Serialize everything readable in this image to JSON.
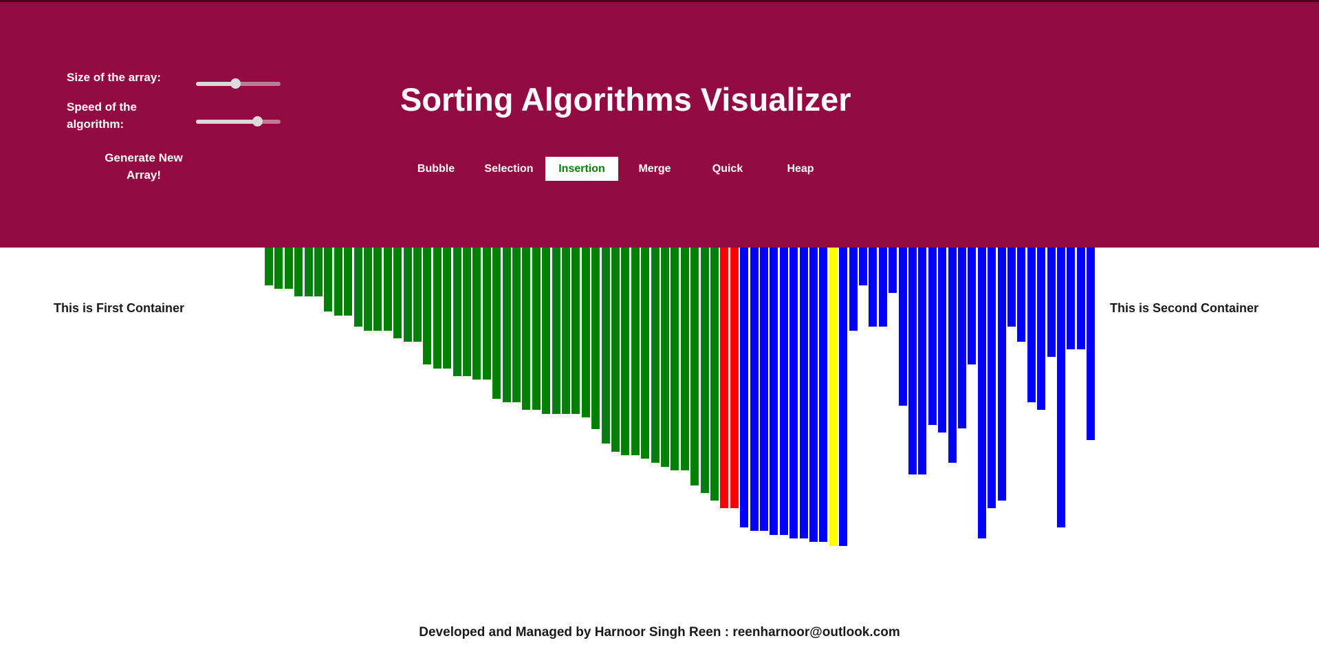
{
  "header": {
    "title": "Sorting Algorithms Visualizer",
    "size_label": "Size of the array:",
    "speed_label_line1": "Speed of the",
    "speed_label_line2": "algorithm:",
    "size_slider_value": 0.46,
    "speed_slider_value": 0.72,
    "generate_line1": "Generate New",
    "generate_line2": "Array!",
    "algorithms": [
      "Bubble",
      "Selection",
      "Insertion",
      "Merge",
      "Quick",
      "Heap"
    ],
    "active_algorithm": "Insertion"
  },
  "first_container": "This is First Container",
  "second_container": "This is Second Container",
  "footer": "Developed and Managed by Harnoor Singh Reen : reenharnoor@outlook.com",
  "colors": {
    "header_bg": "#930941",
    "sorted": "#008000",
    "comparing": "#ff0000",
    "current": "#ffff00",
    "unsorted": "#0000ff"
  },
  "chart_data": {
    "type": "bar",
    "values": [
      55,
      60,
      60,
      71,
      71,
      71,
      93,
      99,
      99,
      115,
      121,
      121,
      121,
      132,
      137,
      137,
      170,
      176,
      176,
      187,
      187,
      192,
      192,
      220,
      225,
      225,
      236,
      236,
      242,
      242,
      242,
      242,
      247,
      264,
      285,
      297,
      302,
      302,
      307,
      313,
      319,
      324,
      324,
      346,
      357,
      368,
      379,
      379,
      407,
      412,
      412,
      418,
      418,
      423,
      423,
      428,
      428,
      434,
      434,
      121,
      55,
      115,
      115,
      66,
      230,
      330,
      330,
      258,
      269,
      313,
      263,
      170,
      423,
      379,
      368,
      115,
      137,
      225,
      236,
      159,
      407,
      148,
      148,
      280
    ],
    "status": [
      "sorted",
      "sorted",
      "sorted",
      "sorted",
      "sorted",
      "sorted",
      "sorted",
      "sorted",
      "sorted",
      "sorted",
      "sorted",
      "sorted",
      "sorted",
      "sorted",
      "sorted",
      "sorted",
      "sorted",
      "sorted",
      "sorted",
      "sorted",
      "sorted",
      "sorted",
      "sorted",
      "sorted",
      "sorted",
      "sorted",
      "sorted",
      "sorted",
      "sorted",
      "sorted",
      "sorted",
      "sorted",
      "sorted",
      "sorted",
      "sorted",
      "sorted",
      "sorted",
      "sorted",
      "sorted",
      "sorted",
      "sorted",
      "sorted",
      "sorted",
      "sorted",
      "sorted",
      "sorted",
      "comparing",
      "comparing",
      "unsorted",
      "unsorted",
      "unsorted",
      "unsorted",
      "unsorted",
      "unsorted",
      "unsorted",
      "unsorted",
      "unsorted",
      "current",
      "unsorted",
      "unsorted",
      "unsorted",
      "unsorted",
      "unsorted",
      "unsorted",
      "unsorted",
      "unsorted",
      "unsorted",
      "unsorted",
      "unsorted",
      "unsorted",
      "unsorted",
      "unsorted",
      "unsorted",
      "unsorted",
      "unsorted",
      "unsorted",
      "unsorted",
      "unsorted",
      "unsorted",
      "unsorted",
      "unsorted",
      "unsorted",
      "unsorted",
      "unsorted"
    ]
  }
}
